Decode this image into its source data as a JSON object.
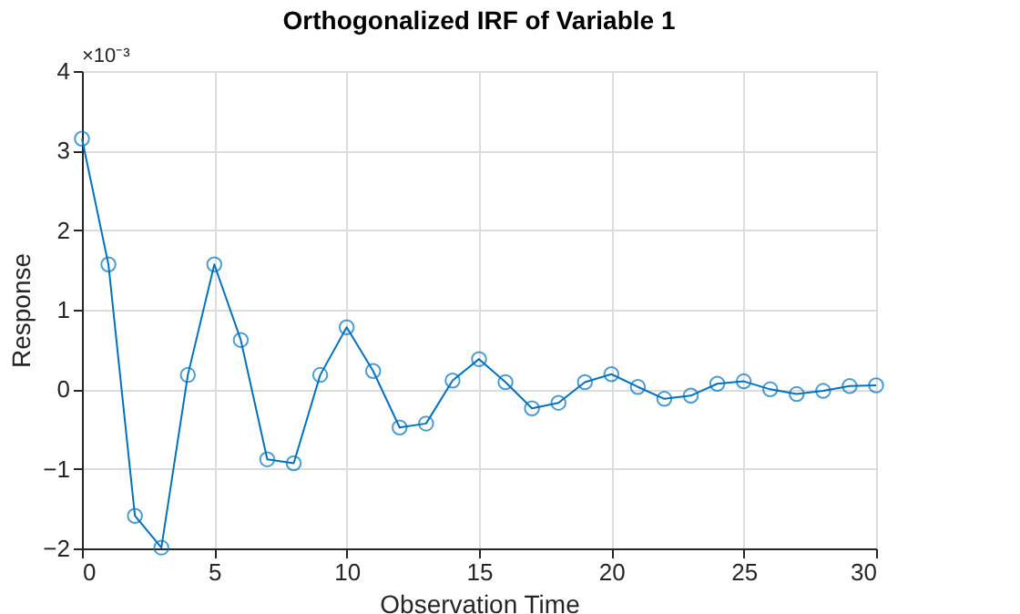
{
  "chart_data": {
    "type": "line",
    "title": "Orthogonalized IRF of Variable 1",
    "xlabel": "Observation Time",
    "ylabel": "Response",
    "annotations": [
      "×10⁻³"
    ],
    "x": [
      0,
      1,
      2,
      3,
      4,
      5,
      6,
      7,
      8,
      9,
      10,
      11,
      12,
      13,
      14,
      15,
      16,
      17,
      18,
      19,
      20,
      21,
      22,
      23,
      24,
      25,
      26,
      27,
      28,
      29,
      30
    ],
    "series": [
      {
        "color": "#0072bd",
        "values": [
          3.15,
          1.57,
          -1.59,
          -1.99,
          0.18,
          1.57,
          0.62,
          -0.88,
          -0.93,
          0.18,
          0.78,
          0.23,
          -0.48,
          -0.43,
          0.11,
          0.38,
          0.09,
          -0.24,
          -0.17,
          0.09,
          0.19,
          0.03,
          -0.12,
          -0.08,
          0.07,
          0.1,
          0.0,
          -0.06,
          -0.02,
          0.04,
          0.05
        ]
      }
    ],
    "xlim": [
      0,
      30
    ],
    "xticks": [
      0,
      5,
      10,
      15,
      20,
      25,
      30
    ],
    "ylim": [
      -2,
      4
    ],
    "yticks": [
      -2,
      -1,
      0,
      1,
      2,
      3,
      4
    ],
    "grid": true,
    "marker": "circle",
    "line_style": "solid"
  }
}
